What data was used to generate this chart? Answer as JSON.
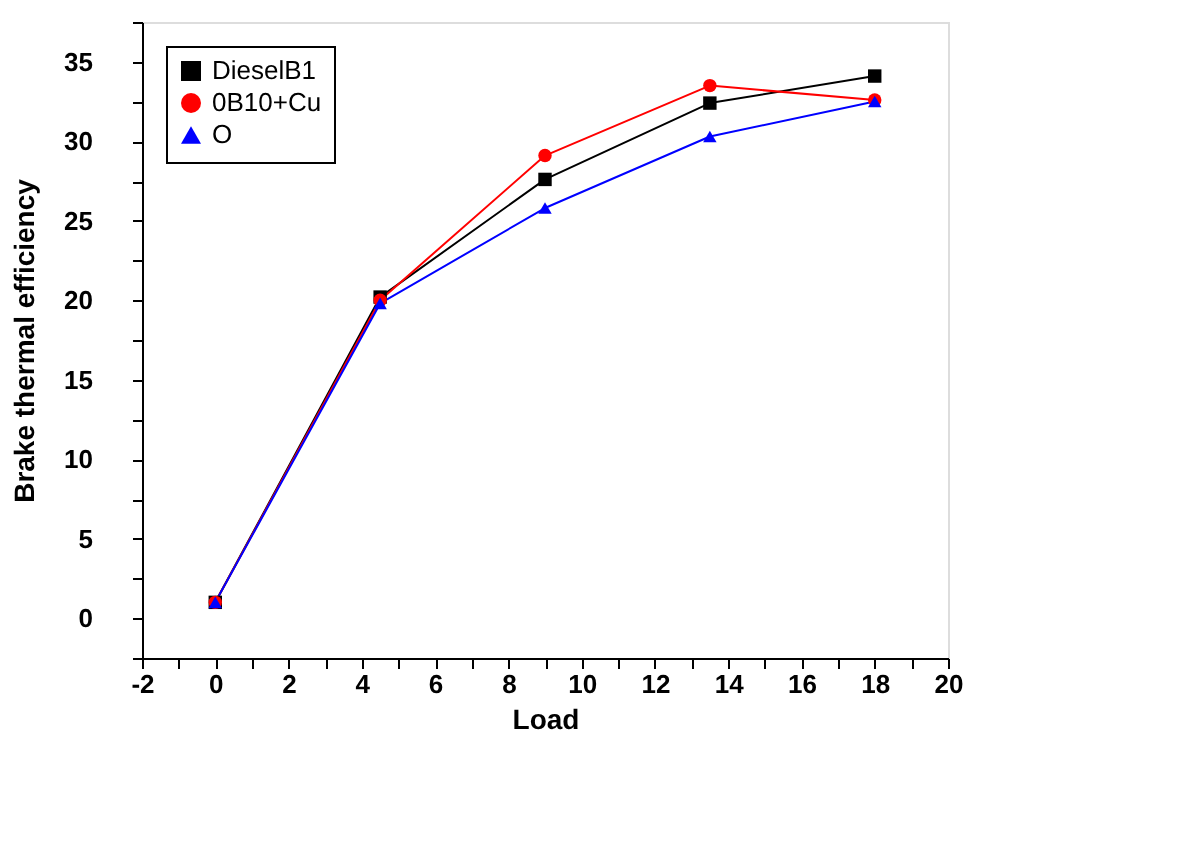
{
  "chart_data": {
    "type": "line",
    "xlabel": "Load",
    "ylabel": "Brake thermal efficiency",
    "xlim": [
      -2,
      20
    ],
    "ylim": [
      -2.5,
      37.5
    ],
    "xticks": [
      -2,
      {
        "value": -1,
        "label": null
      },
      0,
      {
        "value": 1,
        "label": null
      },
      2,
      {
        "value": 3,
        "label": null
      },
      4,
      {
        "value": 5,
        "label": null
      },
      6,
      {
        "value": 7,
        "label": null
      },
      8,
      {
        "value": 9,
        "label": null
      },
      10,
      {
        "value": 11,
        "label": null
      },
      12,
      {
        "value": 13,
        "label": null
      },
      14,
      {
        "value": 15,
        "label": null
      },
      16,
      {
        "value": 17,
        "label": null
      },
      18,
      {
        "value": 19,
        "label": null
      },
      20
    ],
    "yticks": [
      {
        "value": -2.5,
        "label": null
      },
      0,
      {
        "value": 2.5,
        "label": null
      },
      5,
      {
        "value": 7.5,
        "label": null
      },
      10,
      {
        "value": 12.5,
        "label": null
      },
      15,
      {
        "value": 17.5,
        "label": null
      },
      20,
      {
        "value": 22.5,
        "label": null
      },
      25,
      {
        "value": 27.5,
        "label": null
      },
      30,
      {
        "value": 32.5,
        "label": null
      },
      35,
      {
        "value": 37.5,
        "label": null
      }
    ],
    "x": [
      0,
      4.5,
      9,
      13.5,
      18
    ],
    "series": [
      {
        "name": "DieselB1",
        "color": "#000000",
        "marker": "square",
        "values": [
          1,
          20.2,
          27.6,
          32.4,
          34.1
        ]
      },
      {
        "name": "0B10+Cu",
        "color": "#ff0000",
        "marker": "circle",
        "values": [
          1,
          20.0,
          29.1,
          33.5,
          32.6
        ]
      },
      {
        "name": "O",
        "color": "#0000ff",
        "marker": "triangle",
        "values": [
          1,
          19.8,
          25.8,
          30.3,
          32.5
        ]
      }
    ],
    "legend": "top left",
    "grid": false,
    "line_style": "solid"
  }
}
